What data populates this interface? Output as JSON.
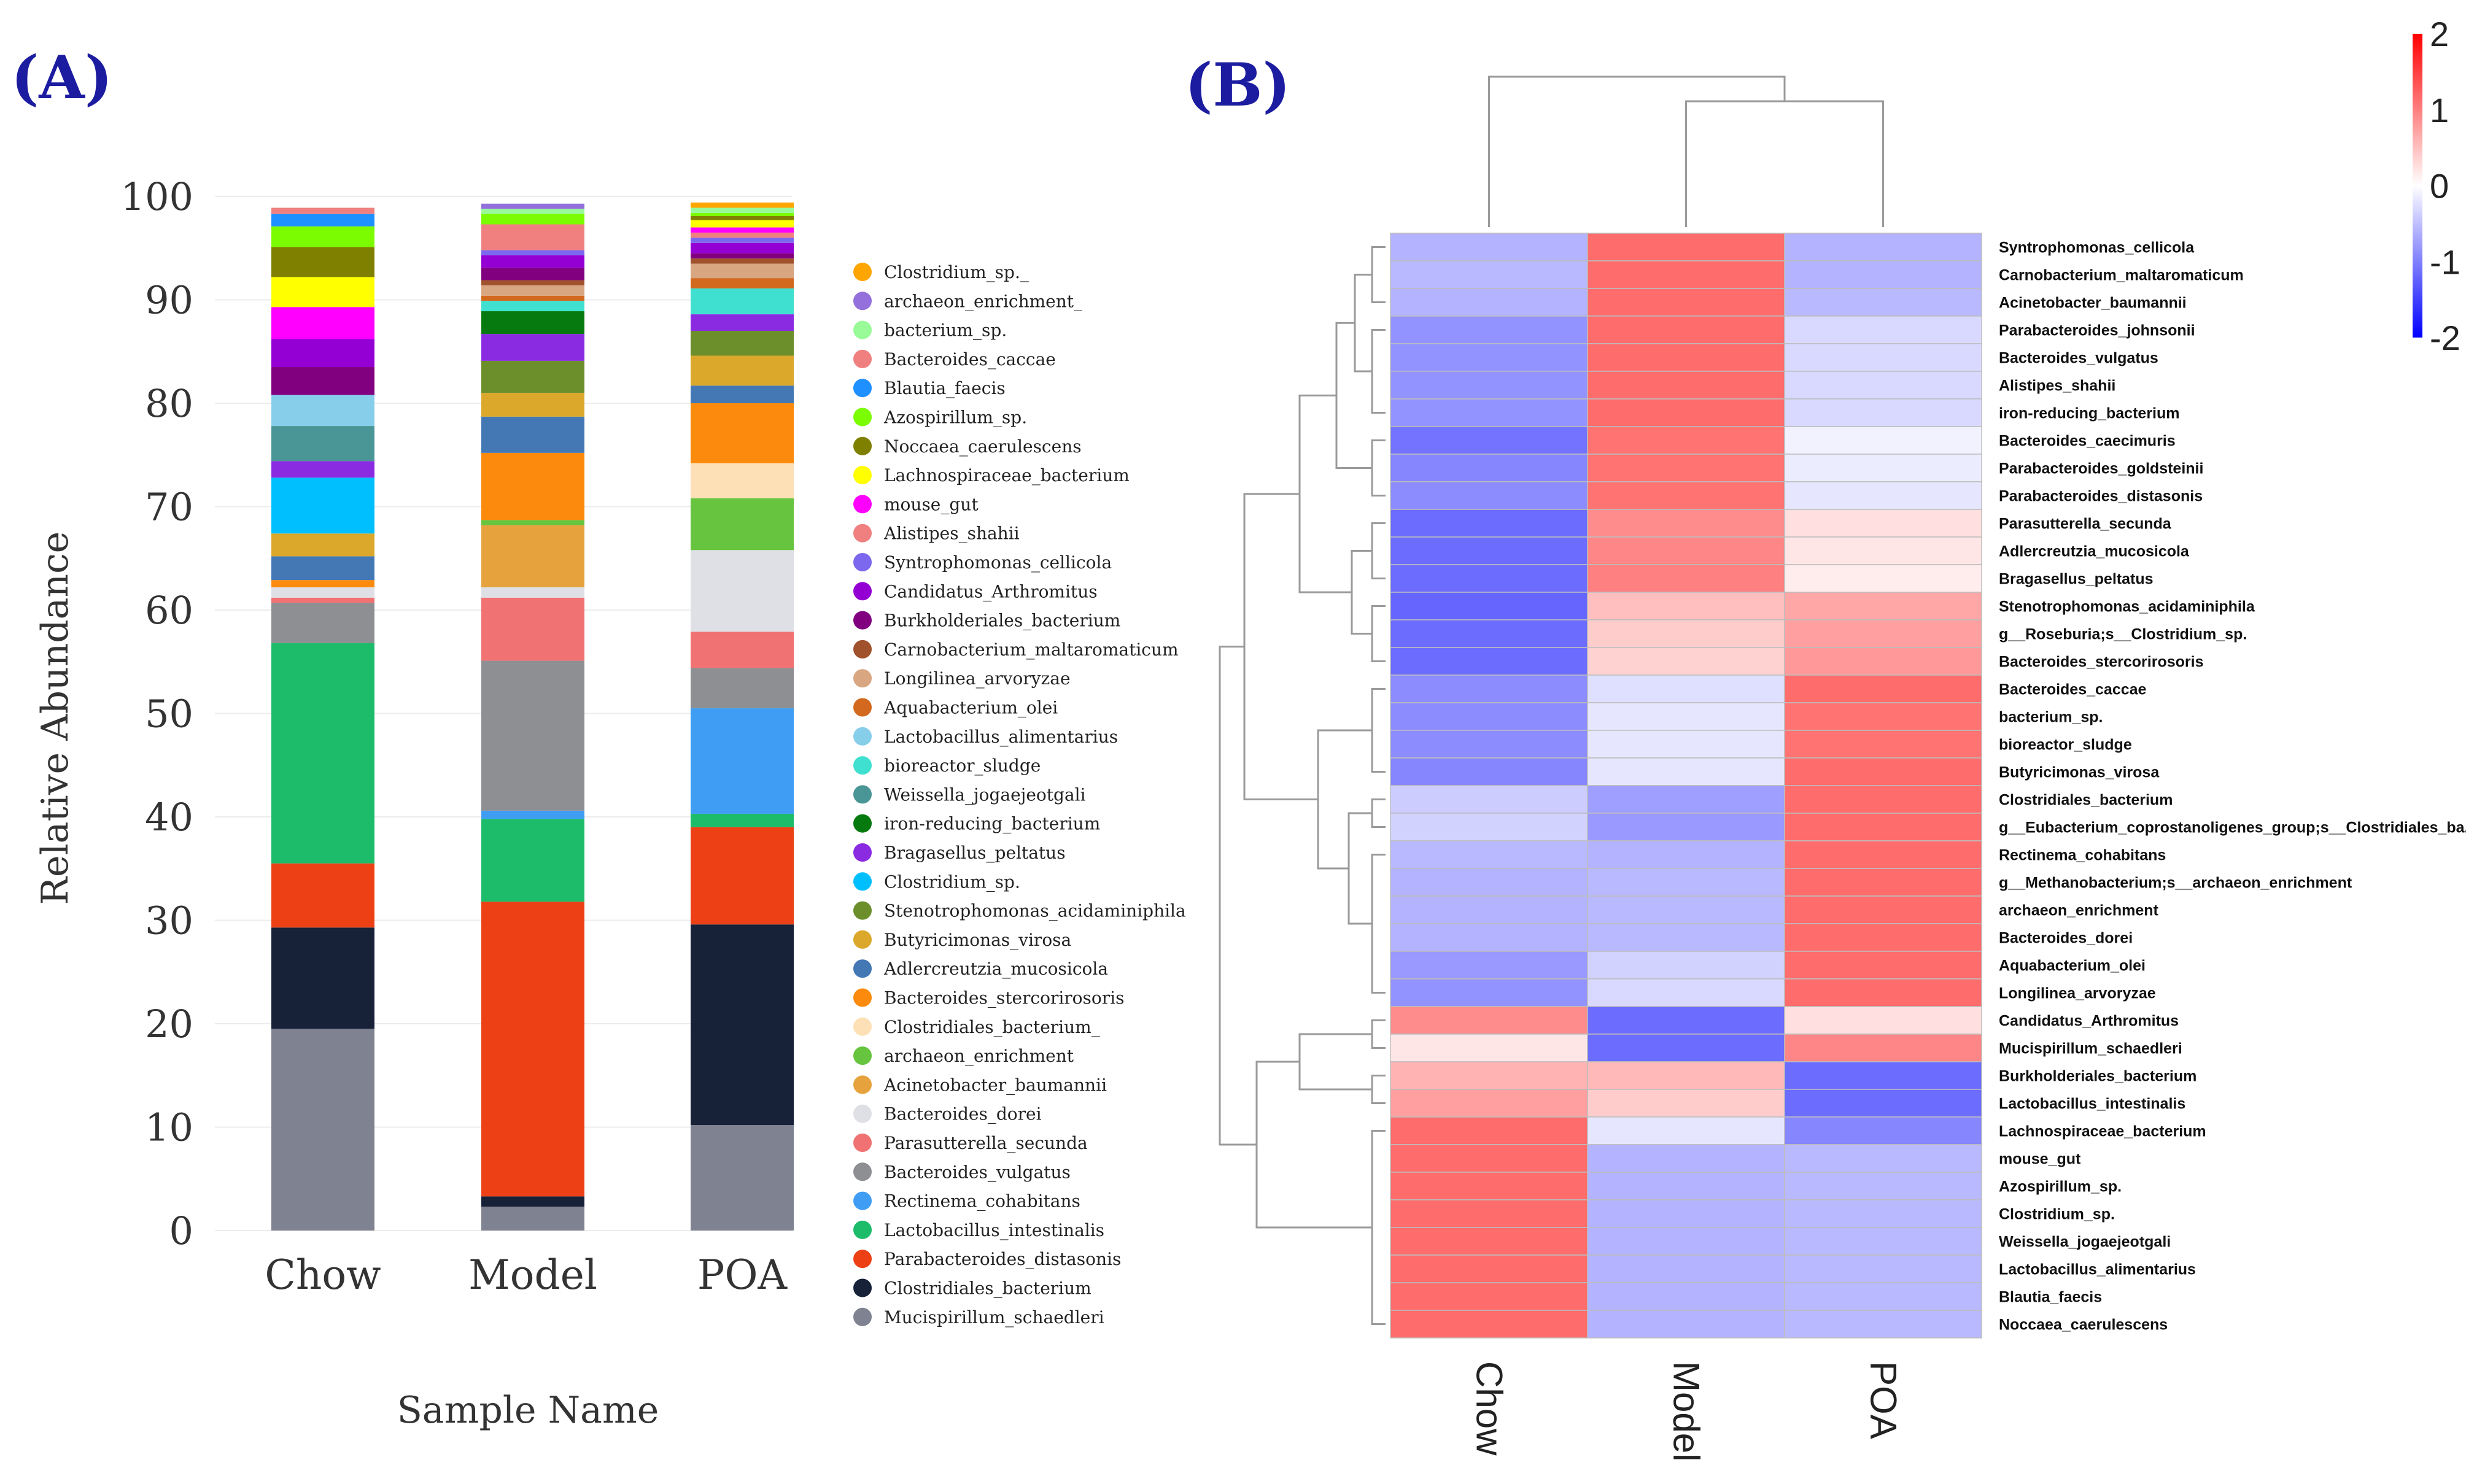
{
  "panel_labels": {
    "a": "(A)",
    "b": "(B)"
  },
  "chart_data": [
    {
      "type": "bar",
      "subtype": "stacked_100",
      "title": "",
      "xlabel": "Sample Name",
      "ylabel": "Relative Abundance",
      "ylim": [
        0,
        100
      ],
      "yticks": [
        0,
        10,
        20,
        30,
        40,
        50,
        60,
        70,
        80,
        90,
        100
      ],
      "categories": [
        "Chow",
        "Model",
        "POA"
      ],
      "series": [
        {
          "name": "Mucispirillum_schaedleri",
          "color": "#7e8291",
          "values": [
            19.5,
            2.3,
            10.2
          ]
        },
        {
          "name": "Clostridiales_bacterium",
          "color": "#172238",
          "values": [
            9.8,
            1.0,
            19.4
          ]
        },
        {
          "name": "Parabacteroides_distasonis",
          "color": "#ed4115",
          "values": [
            6.2,
            28.5,
            9.4
          ]
        },
        {
          "name": "Lactobacillus_intestinalis",
          "color": "#1cbc6a",
          "values": [
            21.3,
            8.0,
            1.3
          ]
        },
        {
          "name": "Rectinema_cohabitans",
          "color": "#3f9df4",
          "values": [
            0.0,
            0.8,
            10.2
          ]
        },
        {
          "name": "Bacteroides_vulgatus",
          "color": "#8d8f93",
          "values": [
            3.9,
            14.5,
            3.9
          ]
        },
        {
          "name": "Parasutterella_secunda",
          "color": "#f07272",
          "values": [
            0.5,
            6.1,
            3.5
          ]
        },
        {
          "name": "Bacteroides_dorei",
          "color": "#dfe0e6",
          "values": [
            1.0,
            1.0,
            7.9
          ]
        },
        {
          "name": "Acinetobacter_baumannii",
          "color": "#e6a23c",
          "values": [
            0.0,
            6.0,
            0.0
          ]
        },
        {
          "name": "archaeon_enrichment",
          "color": "#66c43f",
          "values": [
            0.0,
            0.5,
            5.0
          ]
        },
        {
          "name": "Clostridiales_bacterium_",
          "color": "#fde0b6",
          "values": [
            0.0,
            0.0,
            3.4
          ]
        },
        {
          "name": "Bacteroides_stercorirosoris",
          "color": "#fc8a0c",
          "values": [
            0.7,
            6.5,
            5.8
          ]
        },
        {
          "name": "Adlercreutzia_mucosicola",
          "color": "#4378b5",
          "values": [
            2.3,
            3.5,
            1.7
          ]
        },
        {
          "name": "Butyricimonas_virosa",
          "color": "#dba82b",
          "values": [
            2.2,
            2.3,
            2.9
          ]
        },
        {
          "name": "Stenotrophomonas_acidaminiphila",
          "color": "#6c8e2b",
          "values": [
            0.0,
            3.1,
            2.4
          ]
        },
        {
          "name": "Clostridium_sp.",
          "color": "#00bfff",
          "values": [
            5.4,
            0.0,
            0.0
          ]
        },
        {
          "name": "Bragasellus_peltatus",
          "color": "#8a2be2",
          "values": [
            1.6,
            2.6,
            1.6
          ]
        },
        {
          "name": "iron-reducing_bacterium",
          "color": "#077a0f",
          "values": [
            0.0,
            2.2,
            0.0
          ]
        },
        {
          "name": "Weissella_jogaejeotgali",
          "color": "#4a9696",
          "values": [
            3.4,
            0.0,
            0.0
          ]
        },
        {
          "name": "bioreactor_sludge",
          "color": "#40e0d0",
          "values": [
            0.0,
            1.0,
            2.5
          ]
        },
        {
          "name": "Lactobacillus_alimentarius",
          "color": "#87ceeb",
          "values": [
            3.0,
            0.0,
            0.0
          ]
        },
        {
          "name": "Aquabacterium_olei",
          "color": "#d2691e",
          "values": [
            0.0,
            0.5,
            1.0
          ]
        },
        {
          "name": "Longilinea_arvoryzae",
          "color": "#d8a680",
          "values": [
            0.0,
            1.0,
            1.4
          ]
        },
        {
          "name": "Carnobacterium_maltaromaticum",
          "color": "#a0522d",
          "values": [
            0.0,
            0.5,
            0.5
          ]
        },
        {
          "name": "Burkholderiales_bacterium",
          "color": "#800080",
          "values": [
            2.7,
            1.2,
            0.5
          ]
        },
        {
          "name": "Candidatus_Arthromitus",
          "color": "#9400d3",
          "values": [
            2.7,
            1.2,
            1.0
          ]
        },
        {
          "name": "Syntrophomonas_cellicola",
          "color": "#7b68ee",
          "values": [
            0.0,
            0.5,
            0.5
          ]
        },
        {
          "name": "Alistipes_shahii",
          "color": "#f08080",
          "values": [
            0.0,
            2.5,
            0.5
          ]
        },
        {
          "name": "mouse_gut",
          "color": "#ff00ff",
          "values": [
            3.1,
            0.0,
            0.5
          ]
        },
        {
          "name": "Lachnospiraceae_bacterium",
          "color": "#ffff00",
          "values": [
            2.9,
            0.0,
            0.7
          ]
        },
        {
          "name": "Noccaea_caerulescens",
          "color": "#808000",
          "values": [
            2.9,
            0.0,
            0.4
          ]
        },
        {
          "name": "Azospirillum_sp.",
          "color": "#7cfc00",
          "values": [
            2.0,
            1.0,
            0.3
          ]
        },
        {
          "name": "Blautia_faecis",
          "color": "#1e90ff",
          "values": [
            1.2,
            0.0,
            0.0
          ]
        },
        {
          "name": "Bacteroides_caccae",
          "color": "#f08080",
          "values": [
            0.6,
            0.0,
            0.0
          ]
        },
        {
          "name": "bacterium_sp.",
          "color": "#98fb98",
          "values": [
            0.0,
            0.5,
            0.5
          ]
        },
        {
          "name": "archaeon_enrichment_",
          "color": "#9370db",
          "values": [
            0.0,
            0.5,
            0.0
          ]
        },
        {
          "name": "Clostridium_sp._",
          "color": "#ffa500",
          "values": [
            0.0,
            0.0,
            0.5
          ]
        }
      ],
      "legend_position": "right",
      "legend_entries": [
        {
          "label": "Clostridium_sp._",
          "color": "#ffa500"
        },
        {
          "label": "archaeon_enrichment_",
          "color": "#9370db"
        },
        {
          "label": "bacterium_sp.",
          "color": "#98fb98"
        },
        {
          "label": "Bacteroides_caccae",
          "color": "#f08080"
        },
        {
          "label": "Blautia_faecis",
          "color": "#1e90ff"
        },
        {
          "label": "Azospirillum_sp.",
          "color": "#7cfc00"
        },
        {
          "label": "Noccaea_caerulescens",
          "color": "#808000"
        },
        {
          "label": "Lachnospiraceae_bacterium",
          "color": "#ffff00"
        },
        {
          "label": "mouse_gut",
          "color": "#ff00ff"
        },
        {
          "label": "Alistipes_shahii",
          "color": "#f08080"
        },
        {
          "label": "Syntrophomonas_cellicola",
          "color": "#7b68ee"
        },
        {
          "label": "Candidatus_Arthromitus",
          "color": "#9400d3"
        },
        {
          "label": "Burkholderiales_bacterium",
          "color": "#800080"
        },
        {
          "label": "Carnobacterium_maltaromaticum",
          "color": "#a0522d"
        },
        {
          "label": "Longilinea_arvoryzae",
          "color": "#d8a680"
        },
        {
          "label": "Aquabacterium_olei",
          "color": "#d2691e"
        },
        {
          "label": "Lactobacillus_alimentarius",
          "color": "#87ceeb"
        },
        {
          "label": "bioreactor_sludge",
          "color": "#40e0d0"
        },
        {
          "label": "Weissella_jogaejeotgali",
          "color": "#4a9696"
        },
        {
          "label": "iron-reducing_bacterium",
          "color": "#077a0f"
        },
        {
          "label": "Bragasellus_peltatus",
          "color": "#8a2be2"
        },
        {
          "label": "Clostridium_sp.",
          "color": "#00bfff"
        },
        {
          "label": "Stenotrophomonas_acidaminiphila",
          "color": "#6c8e2b"
        },
        {
          "label": "Butyricimonas_virosa",
          "color": "#dba82b"
        },
        {
          "label": "Adlercreutzia_mucosicola",
          "color": "#4378b5"
        },
        {
          "label": "Bacteroides_stercorirosoris",
          "color": "#fc8a0c"
        },
        {
          "label": "Clostridiales_bacterium_",
          "color": "#fde0b6"
        },
        {
          "label": "archaeon_enrichment",
          "color": "#66c43f"
        },
        {
          "label": "Acinetobacter_baumannii",
          "color": "#e6a23c"
        },
        {
          "label": "Bacteroides_dorei",
          "color": "#dfe0e6"
        },
        {
          "label": "Parasutterella_secunda",
          "color": "#f07272"
        },
        {
          "label": "Bacteroides_vulgatus",
          "color": "#8d8f93"
        },
        {
          "label": "Rectinema_cohabitans",
          "color": "#3f9df4"
        },
        {
          "label": "Lactobacillus_intestinalis",
          "color": "#1cbc6a"
        },
        {
          "label": "Parabacteroides_distasonis",
          "color": "#ed4115"
        },
        {
          "label": "Clostridiales_bacterium",
          "color": "#172238"
        },
        {
          "label": "Mucispirillum_schaedleri",
          "color": "#7e8291"
        }
      ]
    },
    {
      "type": "heatmap",
      "title": "",
      "columns": [
        "Chow",
        "Model",
        "POA"
      ],
      "rows": [
        "Syntrophomonas_cellicola",
        "Carnobacterium_maltaromaticum",
        "Acinetobacter_baumannii",
        "Parabacteroides_johnsonii",
        "Bacteroides_vulgatus",
        "Alistipes_shahii",
        "iron-reducing_bacterium",
        "Bacteroides_caecimuris",
        "Parabacteroides_goldsteinii",
        "Parabacteroides_distasonis",
        "Parasutterella_secunda",
        "Adlercreutzia_mucosicola",
        "Bragasellus_peltatus",
        "Stenotrophomonas_acidaminiphila",
        "g__Roseburia;s__Clostridium_sp.",
        "Bacteroides_stercorirosoris",
        "Bacteroides_caccae",
        "bacterium_sp.",
        "bioreactor_sludge",
        "Butyricimonas_virosa",
        "Clostridiales_bacterium",
        "g__Eubacterium_coprostanoligenes_group;s__Clostridiales_ba...",
        "Rectinema_cohabitans",
        "g__Methanobacterium;s__archaeon_enrichment",
        "archaeon_enrichment",
        "Bacteroides_dorei",
        "Aquabacterium_olei",
        "Longilinea_arvoryzae",
        "Candidatus_Arthromitus",
        "Mucispirillum_schaedleri",
        "Burkholderiales_bacterium",
        "Lactobacillus_intestinalis",
        "Lachnospiraceae_bacterium",
        "mouse_gut",
        "Azospirillum_sp.",
        "Clostridium_sp.",
        "Weissella_jogaejeotgali",
        "Lactobacillus_alimentarius",
        "Blautia_faecis",
        "Noccaea_caerulescens"
      ],
      "values": [
        [
          -0.6,
          1.15,
          -0.6
        ],
        [
          -0.55,
          1.15,
          -0.6
        ],
        [
          -0.6,
          1.15,
          -0.55
        ],
        [
          -0.85,
          1.15,
          -0.3
        ],
        [
          -0.85,
          1.15,
          -0.3
        ],
        [
          -0.85,
          1.15,
          -0.3
        ],
        [
          -0.85,
          1.15,
          -0.3
        ],
        [
          -1.1,
          1.1,
          -0.1
        ],
        [
          -0.95,
          1.1,
          -0.15
        ],
        [
          -0.9,
          1.1,
          -0.2
        ],
        [
          -1.15,
          0.9,
          0.25
        ],
        [
          -1.15,
          0.95,
          0.2
        ],
        [
          -1.15,
          1.0,
          0.15
        ],
        [
          -1.2,
          0.5,
          0.7
        ],
        [
          -1.15,
          0.4,
          0.75
        ],
        [
          -1.15,
          0.35,
          0.8
        ],
        [
          -0.9,
          -0.25,
          1.15
        ],
        [
          -0.9,
          -0.2,
          1.1
        ],
        [
          -0.9,
          -0.2,
          1.1
        ],
        [
          -0.95,
          -0.2,
          1.15
        ],
        [
          -0.4,
          -0.75,
          1.15
        ],
        [
          -0.35,
          -0.8,
          1.15
        ],
        [
          -0.55,
          -0.6,
          1.15
        ],
        [
          -0.6,
          -0.55,
          1.15
        ],
        [
          -0.6,
          -0.55,
          1.15
        ],
        [
          -0.6,
          -0.55,
          1.15
        ],
        [
          -0.8,
          -0.35,
          1.15
        ],
        [
          -0.85,
          -0.3,
          1.15
        ],
        [
          0.9,
          -1.15,
          0.25
        ],
        [
          0.2,
          -1.15,
          0.95
        ],
        [
          0.6,
          0.55,
          -1.15
        ],
        [
          0.75,
          0.4,
          -1.15
        ],
        [
          1.15,
          -0.2,
          -0.95
        ],
        [
          1.15,
          -0.6,
          -0.55
        ],
        [
          1.15,
          -0.6,
          -0.55
        ],
        [
          1.15,
          -0.6,
          -0.55
        ],
        [
          1.15,
          -0.6,
          -0.55
        ],
        [
          1.15,
          -0.6,
          -0.55
        ],
        [
          1.15,
          -0.6,
          -0.55
        ],
        [
          1.15,
          -0.6,
          -0.55
        ]
      ],
      "color_scale": {
        "min": -2,
        "max": 2,
        "ticks": [
          "2",
          "1",
          "0",
          "-1",
          "-2"
        ],
        "low_color": "#0000ff",
        "mid_color": "#ffffff",
        "high_color": "#ff0000"
      },
      "legend_position": "top-right",
      "dendrogram": {
        "rows": true,
        "columns": true,
        "column_clusters": [
          [
            "Model",
            "POA"
          ],
          [
            "Chow",
            [
              "Model",
              "POA"
            ]
          ]
        ]
      }
    }
  ]
}
